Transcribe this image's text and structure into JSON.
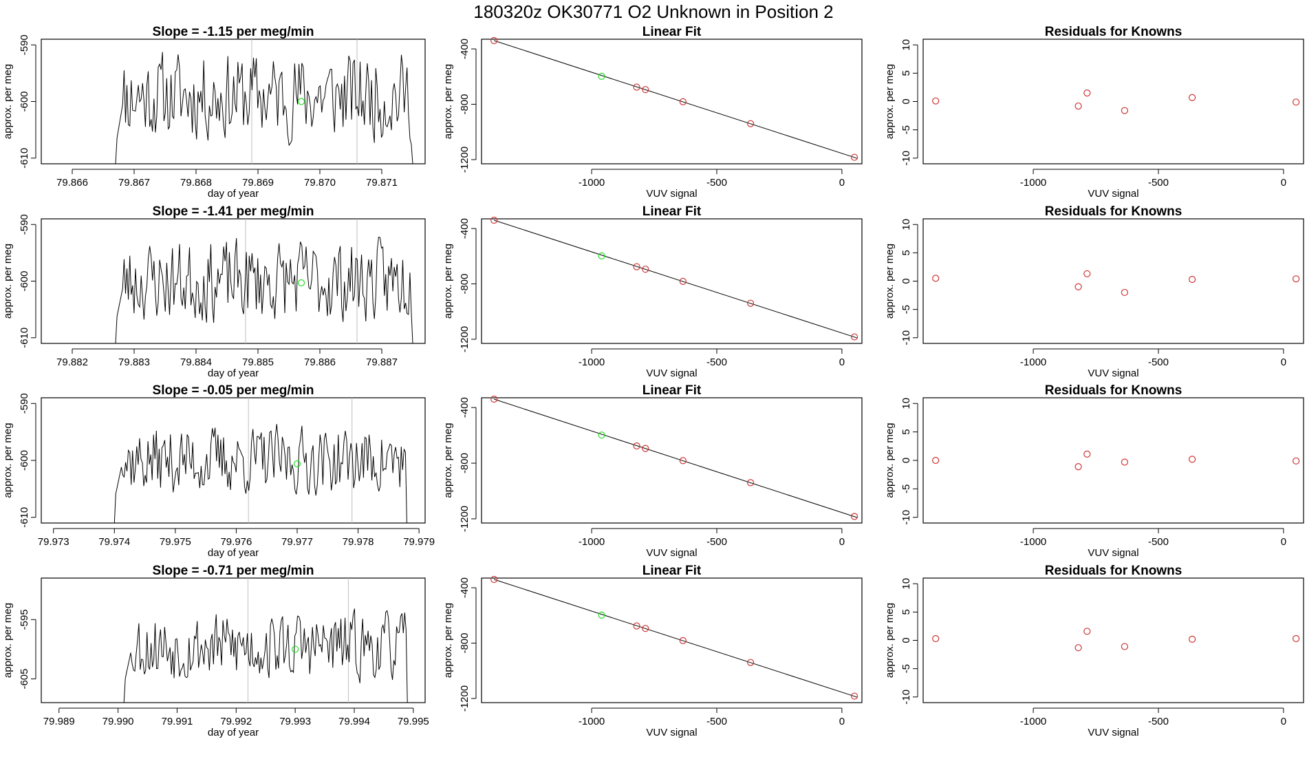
{
  "page_title": "180320z      OK30771    O2 Unknown in Position  2",
  "colors": {
    "line": "#000000",
    "known_point": "#cd3333",
    "unknown_point": "#22dd22",
    "marker_line": "#bebebe"
  },
  "chart_data": [
    {
      "type": "line",
      "row": 1,
      "title": "Slope =  -1.15  per meg/min",
      "xlabel": "day of year",
      "ylabel": "approx. per meg",
      "xlim": [
        79.8655,
        79.8717
      ],
      "ylim": [
        -611,
        -589
      ],
      "xticks": [
        79.866,
        79.867,
        79.868,
        79.869,
        79.87,
        79.871
      ],
      "xtick_labels": [
        "79.866",
        "79.867",
        "79.868",
        "79.869",
        "79.870",
        "79.871"
      ],
      "yticks": [
        -610,
        -600,
        -590
      ],
      "ytick_labels": [
        "-610",
        "-600",
        "-590"
      ],
      "x_start": 79.8667,
      "x_end": 79.8715,
      "y_start": -611,
      "y_end": -611,
      "y_min": -608,
      "y_max": -589.2,
      "y_mean": -599,
      "seed": 11,
      "n_points": 210,
      "marker_lines": [
        79.8689,
        79.8706
      ],
      "unknown_point": {
        "x": 79.8697,
        "y": -600
      }
    },
    {
      "type": "scatter",
      "row": 1,
      "title": "Linear Fit",
      "xlabel": "VUV signal",
      "ylabel": "approx. per meg",
      "xlim": [
        -1440,
        80
      ],
      "ylim": [
        -1230,
        -330
      ],
      "xticks": [
        -1000,
        -500,
        0
      ],
      "xtick_labels": [
        "-1000",
        "-500",
        "0"
      ],
      "yticks": [
        -400,
        -800,
        -1200
      ],
      "ytick_labels": [
        "-400",
        "-800",
        "-1200"
      ],
      "fit_line": {
        "x": [
          -1390,
          60
        ],
        "y": [
          -340,
          -1190
        ]
      },
      "known_points": {
        "x": [
          -1390,
          -820,
          -785,
          -635,
          -365,
          50
        ],
        "y": [
          -340,
          -676,
          -694,
          -782,
          -940,
          -1183
        ]
      },
      "unknown_points": {
        "x": [
          -960
        ],
        "y": [
          -598
        ]
      }
    },
    {
      "type": "scatter",
      "row": 1,
      "title": "Residuals for Knowns",
      "xlabel": "VUV signal",
      "ylabel": "approx. per meg",
      "xlim": [
        -1440,
        80
      ],
      "ylim": [
        -11,
        11
      ],
      "xticks": [
        -1000,
        -500,
        0
      ],
      "xtick_labels": [
        "-1000",
        "-500",
        "0"
      ],
      "yticks": [
        -10,
        -5,
        0,
        5,
        10
      ],
      "ytick_labels": [
        "-10",
        "-5",
        "0",
        "5",
        "10"
      ],
      "known_points": {
        "x": [
          -1390,
          -820,
          -785,
          -635,
          -365,
          50
        ],
        "y": [
          0.1,
          -0.8,
          1.5,
          -1.6,
          0.7,
          -0.1
        ]
      }
    },
    {
      "type": "line",
      "row": 2,
      "title": "Slope =  -1.41  per meg/min",
      "xlabel": "day of year",
      "ylabel": "approx. per meg",
      "xlim": [
        79.8815,
        79.8877
      ],
      "ylim": [
        -611,
        -589
      ],
      "xticks": [
        79.882,
        79.883,
        79.884,
        79.885,
        79.886,
        79.887
      ],
      "xtick_labels": [
        "79.882",
        "79.883",
        "79.884",
        "79.885",
        "79.886",
        "79.887"
      ],
      "yticks": [
        -610,
        -600,
        -590
      ],
      "ytick_labels": [
        "-610",
        "-600",
        "-590"
      ],
      "x_start": 79.8827,
      "x_end": 79.8875,
      "y_start": -611,
      "y_end": -611,
      "y_min": -607.5,
      "y_max": -590,
      "y_mean": -600,
      "seed": 23,
      "n_points": 210,
      "marker_lines": [
        79.8848,
        79.8866
      ],
      "unknown_point": {
        "x": 79.8857,
        "y": -600.3
      }
    },
    {
      "type": "scatter",
      "row": 2,
      "title": "Linear Fit",
      "xlabel": "VUV signal",
      "ylabel": "approx. per meg",
      "xlim": [
        -1440,
        80
      ],
      "ylim": [
        -1230,
        -330
      ],
      "xticks": [
        -1000,
        -500,
        0
      ],
      "xtick_labels": [
        "-1000",
        "-500",
        "0"
      ],
      "yticks": [
        -400,
        -800,
        -1200
      ],
      "ytick_labels": [
        "-400",
        "-800",
        "-1200"
      ],
      "fit_line": {
        "x": [
          -1390,
          60
        ],
        "y": [
          -340,
          -1190
        ]
      },
      "known_points": {
        "x": [
          -1390,
          -820,
          -785,
          -635,
          -365,
          50
        ],
        "y": [
          -340,
          -676,
          -694,
          -782,
          -940,
          -1183
        ]
      },
      "unknown_points": {
        "x": [
          -960
        ],
        "y": [
          -598
        ]
      }
    },
    {
      "type": "scatter",
      "row": 2,
      "title": "Residuals for Knowns",
      "xlabel": "VUV signal",
      "ylabel": "approx. per meg",
      "xlim": [
        -1440,
        80
      ],
      "ylim": [
        -11,
        11
      ],
      "xticks": [
        -1000,
        -500,
        0
      ],
      "xtick_labels": [
        "-1000",
        "-500",
        "0"
      ],
      "yticks": [
        -10,
        -5,
        0,
        5,
        10
      ],
      "ytick_labels": [
        "-10",
        "-5",
        "0",
        "5",
        "10"
      ],
      "known_points": {
        "x": [
          -1390,
          -820,
          -785,
          -635,
          -365,
          50
        ],
        "y": [
          0.5,
          -1.0,
          1.3,
          -2.0,
          0.3,
          0.4
        ]
      }
    },
    {
      "type": "line",
      "row": 3,
      "title": "Slope =  -0.05  per meg/min",
      "xlabel": "day of year",
      "ylabel": "approx. per meg",
      "xlim": [
        79.9728,
        79.9791
      ],
      "ylim": [
        -611,
        -589
      ],
      "xticks": [
        79.973,
        79.974,
        79.975,
        79.976,
        79.977,
        79.978,
        79.979
      ],
      "xtick_labels": [
        "79.973",
        "79.974",
        "79.975",
        "79.976",
        "79.977",
        "79.978",
        "79.979"
      ],
      "yticks": [
        -610,
        -600,
        -590
      ],
      "ytick_labels": [
        "-610",
        "-600",
        "-590"
      ],
      "x_start": 79.974,
      "x_end": 79.9788,
      "y_start": -611,
      "y_end": -611,
      "y_min": -607,
      "y_max": -592.5,
      "y_mean": -600,
      "seed": 37,
      "n_points": 210,
      "marker_lines": [
        79.9762,
        79.9779
      ],
      "unknown_point": {
        "x": 79.977,
        "y": -600.6
      }
    },
    {
      "type": "scatter",
      "row": 3,
      "title": "Linear Fit",
      "xlabel": "VUV signal",
      "ylabel": "approx. per meg",
      "xlim": [
        -1440,
        80
      ],
      "ylim": [
        -1230,
        -330
      ],
      "xticks": [
        -1000,
        -500,
        0
      ],
      "xtick_labels": [
        "-1000",
        "-500",
        "0"
      ],
      "yticks": [
        -400,
        -800,
        -1200
      ],
      "ytick_labels": [
        "-400",
        "-800",
        "-1200"
      ],
      "fit_line": {
        "x": [
          -1390,
          60
        ],
        "y": [
          -340,
          -1190
        ]
      },
      "known_points": {
        "x": [
          -1390,
          -820,
          -785,
          -635,
          -365,
          50
        ],
        "y": [
          -340,
          -676,
          -694,
          -782,
          -940,
          -1183
        ]
      },
      "unknown_points": {
        "x": [
          -960
        ],
        "y": [
          -598
        ]
      }
    },
    {
      "type": "scatter",
      "row": 3,
      "title": "Residuals for Knowns",
      "xlabel": "VUV signal",
      "ylabel": "approx. per meg",
      "xlim": [
        -1440,
        80
      ],
      "ylim": [
        -11,
        11
      ],
      "xticks": [
        -1000,
        -500,
        0
      ],
      "xtick_labels": [
        "-1000",
        "-500",
        "0"
      ],
      "yticks": [
        -10,
        -5,
        0,
        5,
        10
      ],
      "ytick_labels": [
        "-10",
        "-5",
        "0",
        "5",
        "10"
      ],
      "known_points": {
        "x": [
          -1390,
          -820,
          -785,
          -635,
          -365,
          50
        ],
        "y": [
          0.0,
          -1.1,
          1.1,
          -0.3,
          0.2,
          -0.1
        ]
      }
    },
    {
      "type": "line",
      "row": 4,
      "title": "Slope =  -0.71  per meg/min",
      "xlabel": "day of year",
      "ylabel": "approx. per meg",
      "xlim": [
        79.9887,
        79.9952
      ],
      "ylim": [
        -609,
        -588
      ],
      "xticks": [
        79.989,
        79.99,
        79.991,
        79.992,
        79.993,
        79.994,
        79.995
      ],
      "xtick_labels": [
        "79.989",
        "79.990",
        "79.991",
        "79.992",
        "79.993",
        "79.994",
        "79.995"
      ],
      "yticks": [
        -605,
        -595
      ],
      "ytick_labels": [
        "-605",
        "-595"
      ],
      "x_start": 79.9901,
      "x_end": 79.9949,
      "y_start": -609,
      "y_end": -609,
      "y_min": -606,
      "y_max": -592,
      "y_mean": -599.5,
      "seed": 53,
      "n_points": 210,
      "marker_lines": [
        79.9922,
        79.9939
      ],
      "unknown_point": {
        "x": 79.993,
        "y": -600
      }
    },
    {
      "type": "scatter",
      "row": 4,
      "title": "Linear Fit",
      "xlabel": "VUV signal",
      "ylabel": "approx. per meg",
      "xlim": [
        -1440,
        80
      ],
      "ylim": [
        -1230,
        -330
      ],
      "xticks": [
        -1000,
        -500,
        0
      ],
      "xtick_labels": [
        "-1000",
        "-500",
        "0"
      ],
      "yticks": [
        -400,
        -800,
        -1200
      ],
      "ytick_labels": [
        "-400",
        "-800",
        "-1200"
      ],
      "fit_line": {
        "x": [
          -1390,
          60
        ],
        "y": [
          -340,
          -1190
        ]
      },
      "known_points": {
        "x": [
          -1390,
          -820,
          -785,
          -635,
          -365,
          50
        ],
        "y": [
          -340,
          -676,
          -694,
          -782,
          -940,
          -1183
        ]
      },
      "unknown_points": {
        "x": [
          -960
        ],
        "y": [
          -598
        ]
      }
    },
    {
      "type": "scatter",
      "row": 4,
      "title": "Residuals for Knowns",
      "xlabel": "VUV signal",
      "ylabel": "approx. per meg",
      "xlim": [
        -1440,
        80
      ],
      "ylim": [
        -11,
        11
      ],
      "xticks": [
        -1000,
        -500,
        0
      ],
      "xtick_labels": [
        "-1000",
        "-500",
        "0"
      ],
      "yticks": [
        -10,
        -5,
        0,
        5,
        10
      ],
      "ytick_labels": [
        "-10",
        "-5",
        "0",
        "5",
        "10"
      ],
      "known_points": {
        "x": [
          -1390,
          -820,
          -785,
          -635,
          -365,
          50
        ],
        "y": [
          0.3,
          -1.3,
          1.6,
          -1.1,
          0.2,
          0.3
        ]
      }
    }
  ]
}
